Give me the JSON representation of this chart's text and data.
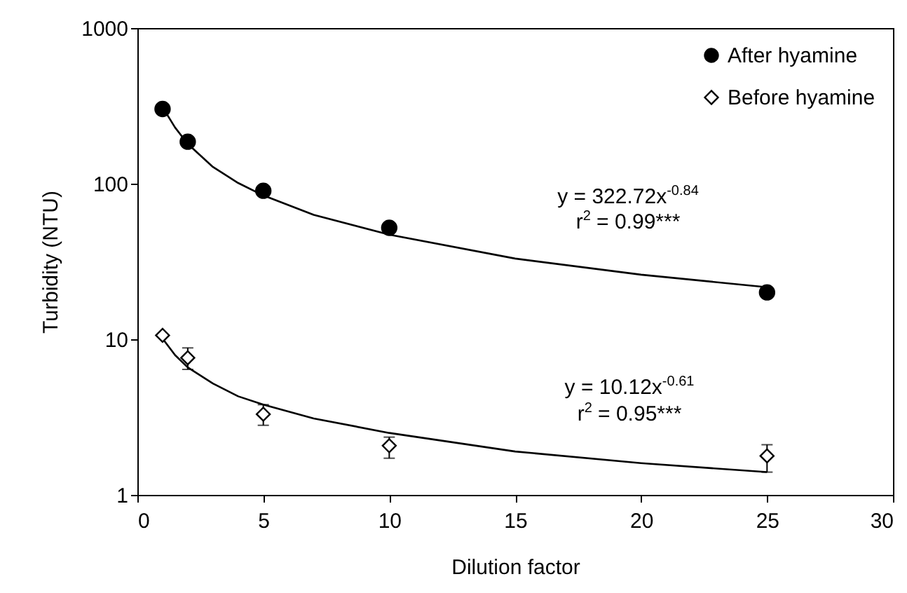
{
  "chart_data": {
    "type": "scatter",
    "xlabel": "Dilution factor",
    "ylabel": "Turbidity (NTU)",
    "xlim": [
      0,
      30
    ],
    "xticks": [
      0,
      5,
      10,
      15,
      20,
      25,
      30
    ],
    "ylim": [
      1,
      1000
    ],
    "yticks": [
      1,
      10,
      100,
      1000
    ],
    "log": "y",
    "grid": false,
    "legend": "top right",
    "series": [
      {
        "name": "After hyamine",
        "marker": "circle",
        "color": "#000000",
        "x": [
          1,
          2,
          5,
          10,
          25
        ],
        "values": [
          302,
          186,
          90,
          52,
          20
        ]
      },
      {
        "name": "Before hyamine",
        "marker": "diamond",
        "color": "#000000",
        "x": [
          1,
          2,
          5,
          10,
          25
        ],
        "values": [
          10.6,
          7.6,
          3.3,
          2.07,
          1.78
        ],
        "errors": [
          null,
          [
            6.4,
            8.8
          ],
          [
            2.8,
            3.8
          ],
          [
            1.72,
            2.35
          ],
          [
            1.4,
            2.1
          ]
        ]
      },
      {
        "type": "line",
        "color": "#000000",
        "x": [
          1,
          1.5,
          2,
          3,
          4,
          5,
          7,
          10,
          15,
          20,
          25
        ],
        "values": [
          310,
          229,
          180,
          128,
          101,
          84,
          63,
          47,
          33,
          26,
          21.6
        ]
      },
      {
        "type": "line",
        "color": "#000000",
        "x": [
          1,
          1.5,
          2,
          3,
          4,
          5,
          7,
          10,
          15,
          20,
          25
        ],
        "values": [
          10.1,
          7.9,
          6.6,
          5.2,
          4.3,
          3.8,
          3.1,
          2.5,
          1.9,
          1.6,
          1.4
        ]
      }
    ],
    "annotations": [
      "y = 322.72x$^{-0.84}$",
      "r$^{2}$ = 0.99***",
      "y = 10.12x$^{-0.61}$",
      "r$^{2}$ = 0.95***"
    ]
  }
}
